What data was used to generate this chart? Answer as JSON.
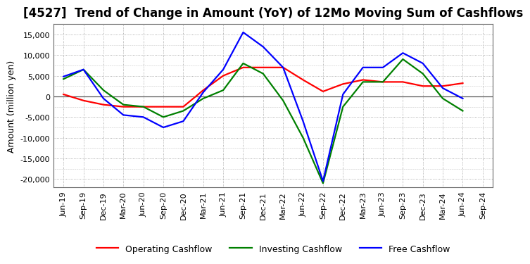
{
  "title_prefix": "[4527]",
  "title_main": "  Trend of Change in Amount (YoY) of 12Mo Moving Sum of Cashflows",
  "ylabel": "Amount (million yen)",
  "x_labels": [
    "Jun-19",
    "Sep-19",
    "Dec-19",
    "Mar-20",
    "Jun-20",
    "Sep-20",
    "Dec-20",
    "Mar-21",
    "Jun-21",
    "Sep-21",
    "Dec-21",
    "Mar-22",
    "Jun-22",
    "Sep-22",
    "Dec-22",
    "Mar-23",
    "Jun-23",
    "Sep-23",
    "Dec-23",
    "Mar-24",
    "Jun-24",
    "Sep-24"
  ],
  "operating": [
    500,
    -1000,
    -2000,
    -2500,
    -2500,
    -2500,
    -2500,
    1500,
    5000,
    7000,
    7000,
    7000,
    4000,
    1200,
    3000,
    4000,
    3500,
    3500,
    2500,
    2500,
    3200,
    null
  ],
  "investing": [
    4200,
    6500,
    1500,
    -2000,
    -2500,
    -5000,
    -3500,
    -500,
    1500,
    8000,
    5500,
    -1000,
    -10000,
    -21000,
    -2500,
    3500,
    3500,
    9000,
    5500,
    -500,
    -3500,
    null
  ],
  "free": [
    4800,
    6500,
    -500,
    -4500,
    -5000,
    -7500,
    -6000,
    1000,
    6500,
    15500,
    12000,
    7000,
    -6000,
    -20500,
    500,
    7000,
    7000,
    10500,
    8000,
    2000,
    -500,
    null
  ],
  "operating_color": "#ff0000",
  "investing_color": "#008000",
  "free_color": "#0000ff",
  "ylim": [
    -22000,
    17500
  ],
  "yticks": [
    -20000,
    -15000,
    -10000,
    -5000,
    0,
    5000,
    10000,
    15000
  ],
  "bg_color": "#ffffff",
  "plot_bg_color": "#ffffff",
  "grid_color": "#999999",
  "title_fontsize": 12,
  "axis_fontsize": 8,
  "legend_fontsize": 9,
  "linewidth": 1.6
}
